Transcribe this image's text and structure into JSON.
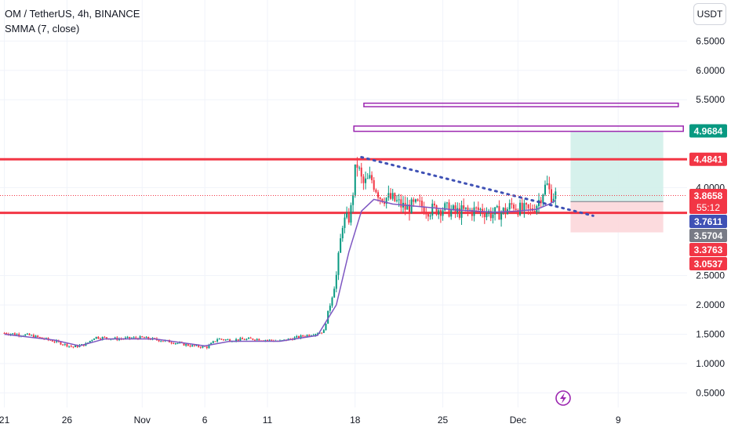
{
  "legend": {
    "title": "OM / TetherUS, 4h, BINANCE",
    "indicator": "SMMA (7, close)"
  },
  "currency_button": "USDT",
  "colors": {
    "up": "#089981",
    "down": "#f23645",
    "sma": "#7e57c2",
    "level": "#f23645",
    "box": "#9c27b0",
    "trend": "#3f51b5",
    "profit": "#d1f0ea",
    "loss": "#fcd7da",
    "current": "#f23645"
  },
  "chart_data": {
    "type": "candlestick",
    "symbol": "OM / TetherUS",
    "interval": "4h",
    "exchange": "BINANCE",
    "y_range": [
      0.25,
      7.2
    ],
    "y_ticks": [
      "0.5000",
      "1.0000",
      "1.5000",
      "2.0000",
      "2.5000",
      "4.0000",
      "5.5000",
      "6.0000",
      "6.5000"
    ],
    "x_ticks": [
      {
        "label": "21",
        "day": 0
      },
      {
        "label": "26",
        "day": 5
      },
      {
        "label": "Nov",
        "day": 11
      },
      {
        "label": "6",
        "day": 16
      },
      {
        "label": "11",
        "day": 21
      },
      {
        "label": "18",
        "day": 28
      },
      {
        "label": "25",
        "day": 35
      },
      {
        "label": "Dec",
        "day": 41
      },
      {
        "label": "9",
        "day": 49
      }
    ],
    "x_range_days": [
      -0.35,
      54.5
    ],
    "price_path": [
      [
        0,
        1.52
      ],
      [
        2,
        1.48
      ],
      [
        4,
        1.38
      ],
      [
        5.5,
        1.28
      ],
      [
        6.5,
        1.33
      ],
      [
        7.2,
        1.45
      ],
      [
        9,
        1.42
      ],
      [
        11,
        1.44
      ],
      [
        13,
        1.38
      ],
      [
        15,
        1.3
      ],
      [
        16.2,
        1.28
      ],
      [
        17,
        1.42
      ],
      [
        18,
        1.4
      ],
      [
        20,
        1.42
      ],
      [
        22,
        1.38
      ],
      [
        23.5,
        1.45
      ],
      [
        24.5,
        1.5
      ],
      [
        25.5,
        1.55
      ],
      [
        26.5,
        2.5
      ],
      [
        27,
        3.4
      ],
      [
        27.6,
        3.5
      ],
      [
        28.1,
        4.45
      ],
      [
        28.6,
        4.05
      ],
      [
        29.3,
        4.15
      ],
      [
        30,
        3.85
      ],
      [
        31,
        3.8
      ],
      [
        32,
        3.65
      ],
      [
        33,
        3.7
      ],
      [
        34,
        3.62
      ],
      [
        35,
        3.65
      ],
      [
        36,
        3.58
      ],
      [
        37,
        3.6
      ],
      [
        38,
        3.62
      ],
      [
        39,
        3.55
      ],
      [
        40,
        3.6
      ],
      [
        40.6,
        3.72
      ],
      [
        41.2,
        3.62
      ],
      [
        42,
        3.6
      ],
      [
        42.6,
        3.75
      ],
      [
        43,
        3.95
      ],
      [
        43.3,
        4.05
      ],
      [
        43.6,
        3.88
      ],
      [
        44,
        3.87
      ]
    ],
    "smma_path": [
      [
        0,
        1.5
      ],
      [
        4,
        1.4
      ],
      [
        6,
        1.3
      ],
      [
        8,
        1.42
      ],
      [
        12,
        1.42
      ],
      [
        16,
        1.3
      ],
      [
        18,
        1.38
      ],
      [
        22,
        1.38
      ],
      [
        25,
        1.48
      ],
      [
        26.5,
        2.0
      ],
      [
        27.5,
        2.9
      ],
      [
        28.5,
        3.6
      ],
      [
        29.5,
        3.8
      ],
      [
        31,
        3.72
      ],
      [
        33,
        3.68
      ],
      [
        36,
        3.62
      ],
      [
        39,
        3.58
      ],
      [
        41,
        3.6
      ],
      [
        42.5,
        3.63
      ],
      [
        43.5,
        3.72
      ],
      [
        44,
        3.78
      ]
    ],
    "horizontal_levels": [
      4.4841,
      3.5704
    ],
    "rectangles": [
      {
        "from_day": 28.7,
        "to_day": 53.8,
        "low": 5.38,
        "high": 5.44
      },
      {
        "from_day": 27.9,
        "to_day": 54.2,
        "low": 4.96,
        "high": 5.05
      }
    ],
    "trend_line": {
      "from": [
        28.5,
        4.52
      ],
      "to": [
        47,
        3.52
      ]
    },
    "position": {
      "from_day": 45.2,
      "to_day": 52.6,
      "target": 4.9684,
      "entry": 3.7611,
      "stop": 3.2368
    },
    "current_price": 3.8658,
    "price_tags": [
      {
        "price": 4.9684,
        "label": "4.9684",
        "bg": "#089981",
        "fg": "#ffffff"
      },
      {
        "price": 4.4841,
        "label": "4.4841",
        "bg": "#f23645",
        "fg": "#ffffff"
      },
      {
        "price": 3.8658,
        "label": "3.8658",
        "sub": "55:12",
        "bg": "#f23645",
        "fg": "#ffffff"
      },
      {
        "price": 3.7611,
        "label": "3.7611",
        "bg": "#3f51b5",
        "fg": "#ffffff"
      },
      {
        "price": 3.5704,
        "label": "3.5704",
        "bg": "#787b86",
        "fg": "#ffffff"
      },
      {
        "price": 3.3763,
        "label": "3.3763",
        "bg": "#f23645",
        "fg": "#ffffff"
      },
      {
        "price": 3.0537,
        "label": "3.0537",
        "bg": "#f23645",
        "fg": "#ffffff"
      }
    ]
  }
}
